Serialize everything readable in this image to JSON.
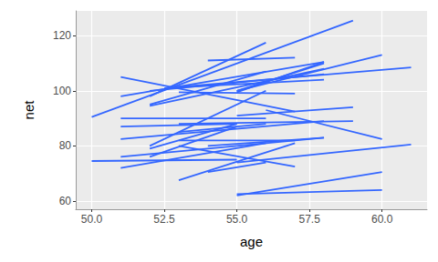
{
  "chart_data": {
    "type": "line",
    "x_label": "age",
    "y_label": "net",
    "color": "#3366ff",
    "grid": true,
    "xlim": [
      49.45,
      61.55
    ],
    "ylim": [
      57,
      129
    ],
    "xticks": [
      {
        "value": 50,
        "label": "50.0"
      },
      52.5,
      {
        "value": 55,
        "label": "55.0"
      },
      57.5,
      {
        "value": 60,
        "label": "60.0"
      }
    ],
    "yticks": [
      60,
      80,
      100,
      120
    ],
    "series": [
      {
        "x": [
          50,
          59
        ],
        "values": [
          90.5,
          125.5
        ]
      },
      {
        "x": [
          52,
          56
        ],
        "values": [
          98,
          117.5
        ]
      },
      {
        "x": [
          54,
          57
        ],
        "values": [
          111,
          112
        ]
      },
      {
        "x": [
          51,
          57
        ],
        "values": [
          105,
          92.5
        ]
      },
      {
        "x": [
          51,
          58
        ],
        "values": [
          98,
          110.5
        ]
      },
      {
        "x": [
          52,
          56
        ],
        "values": [
          95,
          107
        ]
      },
      {
        "x": [
          52,
          58
        ],
        "values": [
          94.5,
          108
        ]
      },
      {
        "x": [
          52,
          58
        ],
        "values": [
          100,
          106
        ]
      },
      {
        "x": [
          52.5,
          58
        ],
        "values": [
          101,
          104
        ]
      },
      {
        "x": [
          53,
          57
        ],
        "values": [
          99.5,
          99
        ]
      },
      {
        "x": [
          55,
          58
        ],
        "values": [
          100,
          110
        ]
      },
      {
        "x": [
          55,
          58
        ],
        "values": [
          99.5,
          110.5
        ]
      },
      {
        "x": [
          52,
          56
        ],
        "values": [
          80,
          100
        ]
      },
      {
        "x": [
          52,
          55
        ],
        "values": [
          79,
          88
        ]
      },
      {
        "x": [
          55,
          60
        ],
        "values": [
          100,
          113
        ]
      },
      {
        "x": [
          52.5,
          61
        ],
        "values": [
          101,
          108.5
        ]
      },
      {
        "x": [
          55,
          59
        ],
        "values": [
          91,
          94
        ]
      },
      {
        "x": [
          51,
          56
        ],
        "values": [
          90,
          90
        ]
      },
      {
        "x": [
          51,
          58
        ],
        "values": [
          82.5,
          89
        ]
      },
      {
        "x": [
          53,
          59
        ],
        "values": [
          88,
          89
        ]
      },
      {
        "x": [
          56,
          60
        ],
        "values": [
          93,
          82.5
        ]
      },
      {
        "x": [
          51,
          58
        ],
        "values": [
          76,
          83
        ]
      },
      {
        "x": [
          51,
          56
        ],
        "values": [
          72,
          81
        ]
      },
      {
        "x": [
          52,
          55
        ],
        "values": [
          76,
          87
        ]
      },
      {
        "x": [
          50,
          55
        ],
        "values": [
          74.5,
          75
        ]
      },
      {
        "x": [
          53,
          57
        ],
        "values": [
          80,
          72.5
        ]
      },
      {
        "x": [
          53,
          57
        ],
        "values": [
          82,
          82
        ]
      },
      {
        "x": [
          53,
          57
        ],
        "values": [
          67.5,
          81
        ]
      },
      {
        "x": [
          54,
          56
        ],
        "values": [
          70.5,
          74
        ]
      },
      {
        "x": [
          55,
          61
        ],
        "values": [
          74,
          80.5
        ]
      },
      {
        "x": [
          55,
          60
        ],
        "values": [
          62,
          70.5
        ]
      },
      {
        "x": [
          55,
          60
        ],
        "values": [
          62.5,
          64
        ]
      },
      {
        "x": [
          51,
          55
        ],
        "values": [
          87,
          88
        ]
      },
      {
        "x": [
          53,
          56
        ],
        "values": [
          85,
          88
        ]
      },
      {
        "x": [
          54,
          58
        ],
        "values": [
          80,
          83
        ]
      }
    ]
  }
}
